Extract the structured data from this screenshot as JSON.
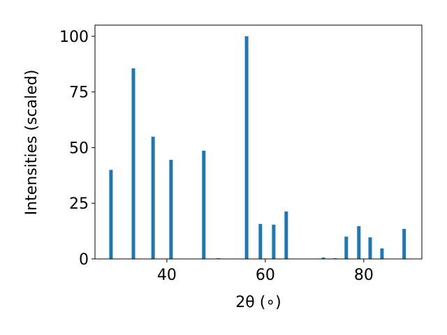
{
  "chart_data": {
    "type": "bar",
    "x_label": "2θ (∘)",
    "y_label": "Intensities (scaled)",
    "x": [
      28.65,
      33.2,
      37.2,
      40.85,
      47.5,
      50.5,
      56.2,
      59.0,
      61.7,
      64.25,
      71.8,
      74.2,
      76.45,
      79.0,
      81.3,
      83.7,
      88.2
    ],
    "values": [
      40,
      85.6,
      54.9,
      44.5,
      48.6,
      0.3,
      100,
      15.7,
      15.4,
      21.3,
      0.6,
      0.3,
      10,
      14.7,
      9.7,
      4.7,
      13.5
    ],
    "color": "#1f77b4",
    "xlim": [
      25.4,
      91.8
    ],
    "xticks": [
      40,
      60,
      80
    ],
    "ylim": [
      0,
      105
    ],
    "yticks": [
      0,
      25,
      50,
      75,
      100
    ],
    "grid": false
  }
}
